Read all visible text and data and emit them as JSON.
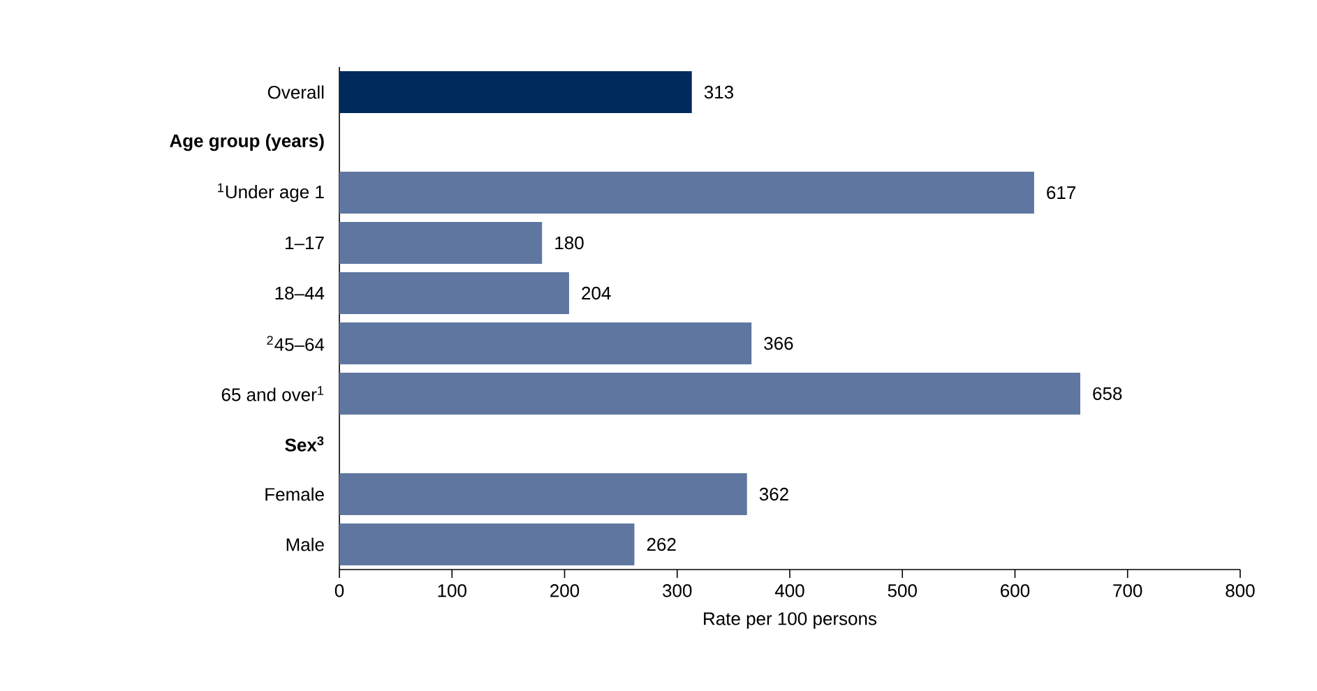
{
  "chart_data": {
    "type": "bar",
    "orientation": "horizontal",
    "xlabel": "Rate per 100 persons",
    "categories": [
      "Overall",
      "Age group (years)",
      "$^{1}$Under age 1",
      "1–17",
      "18–44",
      "$^{2}$45–64",
      "65 and over$^{1}$",
      "Sex$^{3}$",
      "Female",
      "Male"
    ],
    "values": [
      313,
      null,
      617,
      180,
      204,
      366,
      658,
      null,
      362,
      262
    ],
    "colors": [
      "#002a5c",
      null,
      "#5f77a0",
      "#5f77a0",
      "#5f77a0",
      "#5f77a0",
      "#5f77a0",
      null,
      "#5f77a0",
      "#5f77a0"
    ],
    "xlim": [
      0,
      800
    ],
    "xticks": [
      0,
      100,
      200,
      300,
      400,
      500,
      600,
      700,
      800
    ],
    "data_labels": true,
    "grid": false
  }
}
